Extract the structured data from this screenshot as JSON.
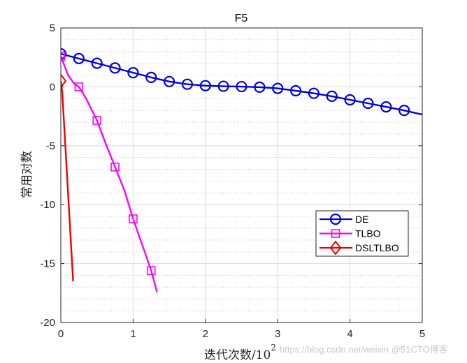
{
  "chart_data": {
    "type": "line",
    "title": "F5",
    "xlabel": "迭代次数/10",
    "xlabel_exponent": "2",
    "ylabel": "常用对数",
    "xlim": [
      0,
      5
    ],
    "ylim": [
      -20,
      5
    ],
    "xticks": [
      0,
      1,
      2,
      3,
      4,
      5
    ],
    "yticks": [
      5,
      0,
      -5,
      -10,
      -15,
      -20
    ],
    "grid": true,
    "minor_grid": true,
    "legend_position": "lower right (inside)",
    "series": [
      {
        "name": "DE",
        "color": "#0000e0",
        "marker": "circle",
        "x": [
          0,
          0.25,
          0.5,
          0.75,
          1.0,
          1.25,
          1.5,
          1.75,
          2.0,
          2.25,
          2.5,
          2.75,
          3.0,
          3.25,
          3.5,
          3.75,
          4.0,
          4.25,
          4.5,
          4.75,
          5.0
        ],
        "values": [
          2.8,
          2.4,
          2.0,
          1.6,
          1.2,
          0.8,
          0.45,
          0.22,
          0.1,
          0.05,
          0.02,
          -0.03,
          -0.13,
          -0.33,
          -0.55,
          -0.8,
          -1.1,
          -1.4,
          -1.7,
          -2.0,
          -2.35
        ],
        "marker_count": 20
      },
      {
        "name": "TLBO",
        "color": "#ff00ff",
        "marker": "square",
        "x": [
          0,
          0.1,
          0.18,
          0.25,
          0.35,
          0.5,
          0.62,
          0.75,
          0.88,
          1.0,
          1.12,
          1.25,
          1.33
        ],
        "values": [
          2.6,
          1.0,
          0.3,
          0.0,
          -1.0,
          -2.85,
          -4.8,
          -6.8,
          -8.8,
          -11.2,
          -13.3,
          -15.6,
          -17.4
        ],
        "marker_x": [
          0,
          0.25,
          0.5,
          0.75,
          1.0,
          1.25
        ]
      },
      {
        "name": "DSLTLBO",
        "color": "#ee0000",
        "marker": "diamond",
        "x": [
          0,
          0.02,
          0.17
        ],
        "values": [
          0.5,
          -0.5,
          -16.5
        ],
        "marker_x": [
          0
        ]
      }
    ]
  },
  "watermark": "https://blog.csdn.net/weixin  @51CTO博客"
}
